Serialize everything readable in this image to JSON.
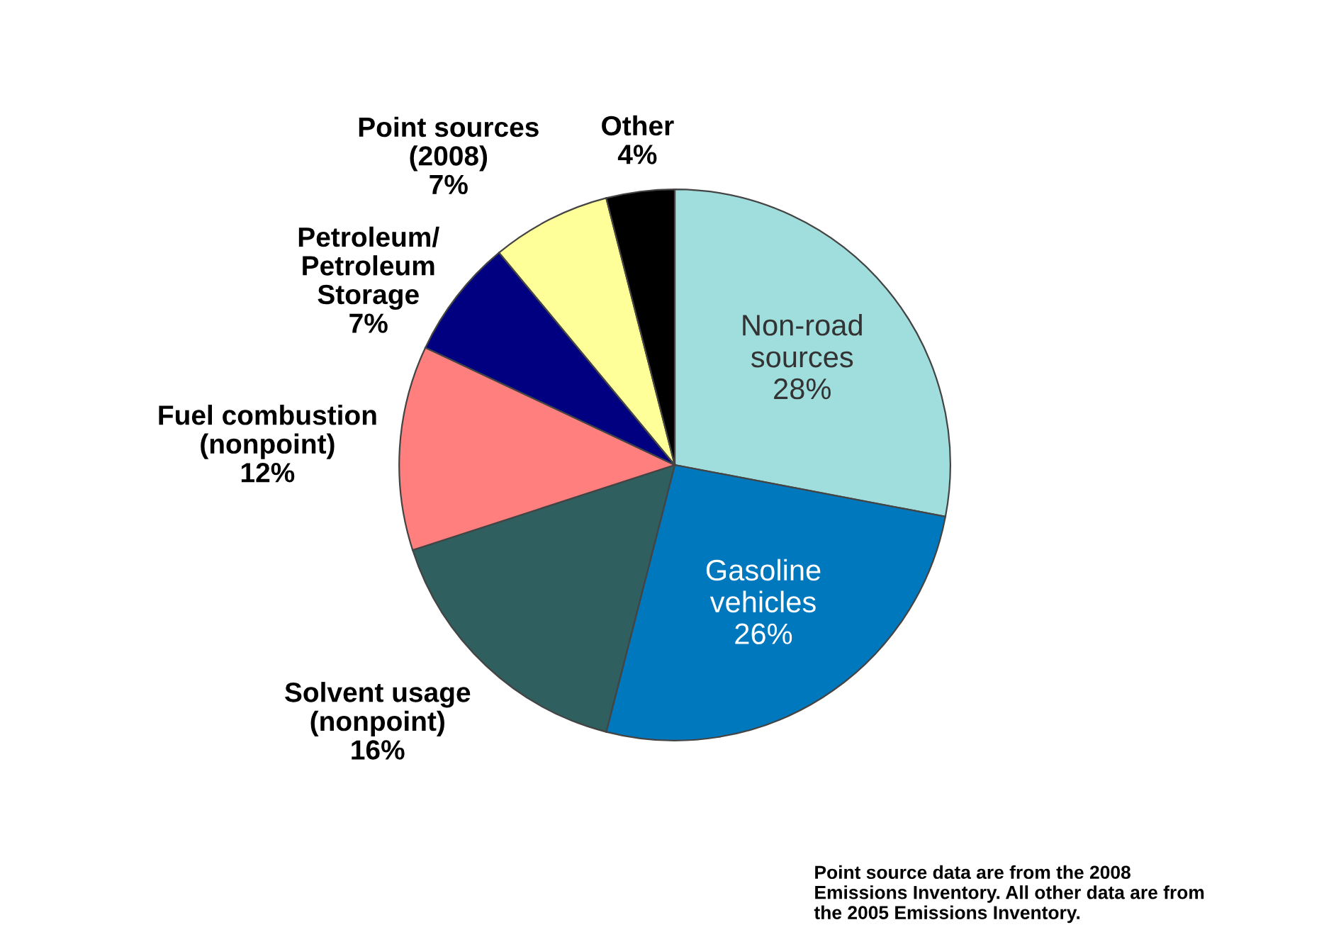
{
  "chart_data": {
    "type": "pie",
    "categories": [
      "Non-road\nsources",
      "Gasoline\nvehicles",
      "Solvent usage\n(nonpoint)",
      "Fuel combustion\n(nonpoint)",
      "Petroleum/\nPetroleum\nStorage",
      "Point sources\n(2008)",
      "Other"
    ],
    "values": [
      28,
      26,
      16,
      12,
      7,
      7,
      4
    ],
    "value_labels": [
      "28%",
      "26%",
      "16%",
      "12%",
      "7%",
      "7%",
      "4%"
    ],
    "colors": [
      "#a0dede",
      "#0078be",
      "#2f5f5f",
      "#ff7f7f",
      "#000080",
      "#ffff99",
      "#000000"
    ],
    "annotations": [
      "Point source data are from the 2008\nEmissions Inventory. All other data are from\nthe 2005 Emissions Inventory."
    ]
  }
}
